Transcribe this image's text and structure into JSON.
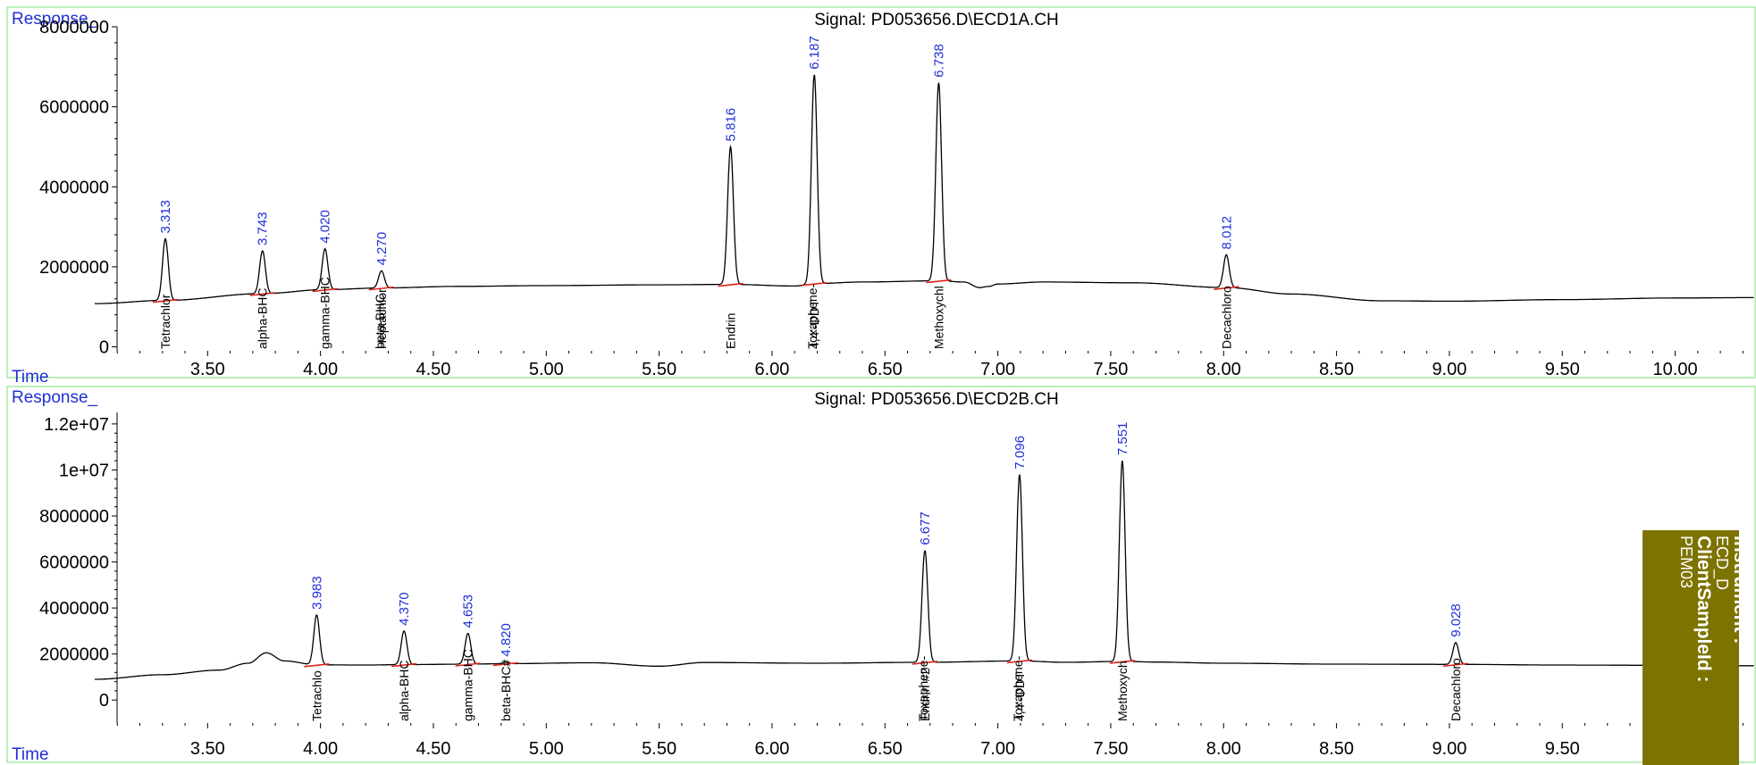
{
  "chart_data": [
    {
      "type": "line",
      "title": "Signal: PD053656.D\\ECD1A.CH",
      "ylabel": "Response_",
      "xlabel": "Time",
      "xlim": [
        3.0,
        10.35
      ],
      "ylim": [
        -100000,
        8000000
      ],
      "x_ticks": [
        "3.50",
        "4.00",
        "4.50",
        "5.00",
        "5.50",
        "6.00",
        "6.50",
        "7.00",
        "7.50",
        "8.00",
        "8.50",
        "9.00",
        "9.50",
        "10.00"
      ],
      "y_ticks": [
        "0",
        "2000000",
        "4000000",
        "6000000",
        "8000000"
      ],
      "baseline": [
        [
          3.0,
          1080000
        ],
        [
          3.313,
          1160000
        ],
        [
          3.743,
          1330000
        ],
        [
          4.02,
          1430000
        ],
        [
          4.27,
          1470000
        ],
        [
          4.6,
          1510000
        ],
        [
          5.0,
          1530000
        ],
        [
          5.5,
          1550000
        ],
        [
          5.816,
          1560000
        ],
        [
          6.1,
          1520000
        ],
        [
          6.187,
          1580000
        ],
        [
          6.4,
          1620000
        ],
        [
          6.738,
          1650000
        ],
        [
          6.85,
          1620000
        ],
        [
          6.92,
          1480000
        ],
        [
          6.96,
          1510000
        ],
        [
          7.0,
          1570000
        ],
        [
          7.2,
          1620000
        ],
        [
          7.6,
          1600000
        ],
        [
          8.012,
          1480000
        ],
        [
          8.3,
          1320000
        ],
        [
          8.7,
          1150000
        ],
        [
          9.0,
          1140000
        ],
        [
          9.5,
          1180000
        ],
        [
          10.0,
          1220000
        ],
        [
          10.35,
          1230000
        ]
      ],
      "peaks": [
        {
          "rt": "3.313",
          "x": 3.313,
          "height": 2700000,
          "compound": "Tetrachlor"
        },
        {
          "rt": "3.743",
          "x": 3.743,
          "height": 2400000,
          "compound": "alpha-BHC"
        },
        {
          "rt": "4.020",
          "x": 4.02,
          "height": 2450000,
          "compound": "gamma-BHC"
        },
        {
          "rt": "4.270",
          "x": 4.27,
          "height": 1900000,
          "compound": "Heptachlor"
        },
        {
          "rt": "5.816",
          "x": 5.816,
          "height": 5000000,
          "compound": "Endrin"
        },
        {
          "rt": "6.187",
          "x": 6.187,
          "height": 6800000,
          "compound": "4,4'-DDT"
        },
        {
          "rt": "6.738",
          "x": 6.738,
          "height": 6600000,
          "compound": "Methoxychl"
        },
        {
          "rt": "8.012",
          "x": 8.012,
          "height": 2300000,
          "compound": "Decachloro"
        }
      ],
      "extra_labels": [
        {
          "x": 4.262,
          "text": "beta-BHC"
        },
        {
          "x": 6.179,
          "text": "Toxaphene-"
        }
      ]
    },
    {
      "type": "line",
      "title": "Signal: PD053656.D\\ECD2B.CH",
      "ylabel": "Response_",
      "xlabel": "Time",
      "xlim": [
        3.0,
        10.35
      ],
      "ylim": [
        -1000000,
        12500000
      ],
      "x_ticks": [
        "3.50",
        "4.00",
        "4.50",
        "5.00",
        "5.50",
        "6.00",
        "6.50",
        "7.00",
        "7.50",
        "8.00",
        "8.50",
        "9.00",
        "9.50"
      ],
      "y_ticks": [
        "0",
        "2000000",
        "4000000",
        "6000000",
        "8000000",
        "1e+07",
        "1.2e+07"
      ],
      "baseline": [
        [
          3.0,
          900000
        ],
        [
          3.3,
          1100000
        ],
        [
          3.55,
          1300000
        ],
        [
          3.68,
          1600000
        ],
        [
          3.76,
          2050000
        ],
        [
          3.84,
          1700000
        ],
        [
          3.983,
          1530000
        ],
        [
          4.2,
          1520000
        ],
        [
          4.37,
          1540000
        ],
        [
          4.653,
          1560000
        ],
        [
          4.82,
          1580000
        ],
        [
          5.2,
          1620000
        ],
        [
          5.5,
          1470000
        ],
        [
          5.7,
          1630000
        ],
        [
          6.2,
          1600000
        ],
        [
          6.677,
          1640000
        ],
        [
          7.096,
          1700000
        ],
        [
          7.3,
          1640000
        ],
        [
          7.551,
          1680000
        ],
        [
          7.7,
          1650000
        ],
        [
          8.0,
          1600000
        ],
        [
          8.5,
          1560000
        ],
        [
          9.028,
          1550000
        ],
        [
          9.5,
          1520000
        ],
        [
          10.35,
          1490000
        ]
      ],
      "peaks": [
        {
          "rt": "3.983",
          "x": 3.983,
          "height": 3700000,
          "compound": "Tetrachlo"
        },
        {
          "rt": "4.370",
          "x": 4.37,
          "height": 3000000,
          "compound": "alpha-BHC"
        },
        {
          "rt": "4.653",
          "x": 4.653,
          "height": 2900000,
          "compound": "gamma-BHC"
        },
        {
          "rt": "4.820",
          "x": 4.82,
          "height": 1650000,
          "compound": "beta-BHC#"
        },
        {
          "rt": "6.677",
          "x": 6.677,
          "height": 6500000,
          "compound": "Endrin #2"
        },
        {
          "rt": "7.096",
          "x": 7.096,
          "height": 9800000,
          "compound": "4,4'-DDT"
        },
        {
          "rt": "7.551",
          "x": 7.551,
          "height": 10400000,
          "compound": "Methoxych"
        },
        {
          "rt": "9.028",
          "x": 9.028,
          "height": 2500000,
          "compound": "Decachloro"
        }
      ],
      "extra_labels": [
        {
          "x": 6.669,
          "text": "Toxaphene-"
        },
        {
          "x": 7.088,
          "text": "Toxaphene-"
        }
      ]
    }
  ],
  "info_panel": {
    "instrument_label": "Instrument :",
    "instrument_value": "ECD_D",
    "client_label": "ClientSampleId :",
    "client_value": "PEM03"
  },
  "colors": {
    "frame": "#9de89d",
    "label_blue": "#1f2fd6",
    "baseline_red": "#e0241a",
    "info_panel": "#7d7300"
  }
}
